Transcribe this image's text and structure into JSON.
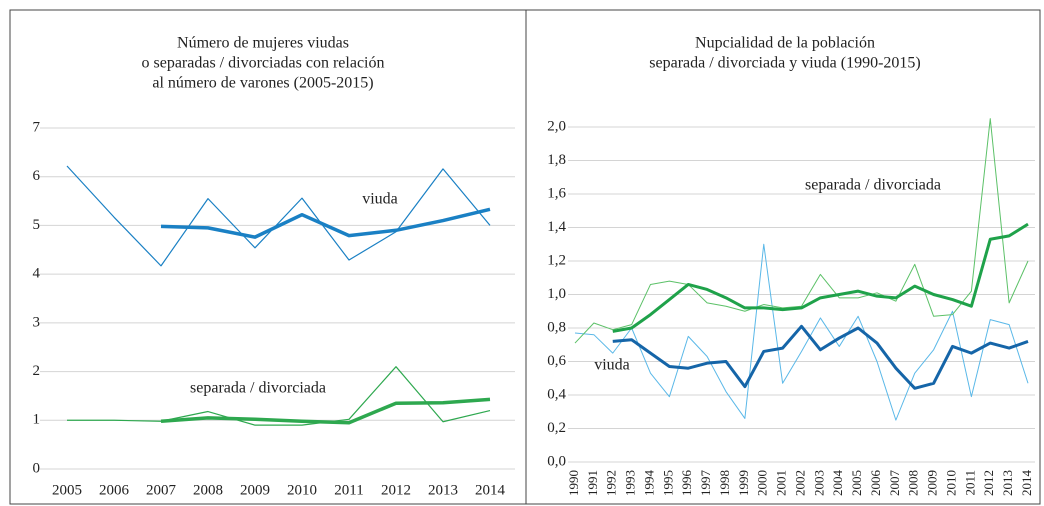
{
  "chart_data": [
    {
      "type": "line",
      "title": [
        "Número de mujeres viudas",
        "o separadas / divorciadas con relación",
        "al número de varones (2005-2015)"
      ],
      "categories": [
        "2005",
        "2006",
        "2007",
        "2008",
        "2009",
        "2010",
        "2011",
        "2012",
        "2013",
        "2014"
      ],
      "ylim": [
        0,
        7
      ],
      "yticks": [
        0,
        1,
        2,
        3,
        4,
        5,
        6,
        7
      ],
      "grid": true,
      "annotations": [
        "viuda",
        "separada / divorciada"
      ],
      "series": [
        {
          "color": "#1a80c4",
          "line_width": 1.2,
          "values": [
            6.22,
            5.17,
            4.17,
            5.55,
            4.54,
            5.56,
            4.29,
            4.87,
            6.16,
            5.0
          ]
        },
        {
          "color": "#1a80c4",
          "line_width": 3.5,
          "values": [
            null,
            null,
            4.98,
            4.95,
            4.76,
            5.22,
            4.79,
            4.9,
            5.1,
            5.33
          ]
        },
        {
          "color": "#2ea84f",
          "line_width": 1.2,
          "values": [
            1.0,
            1.0,
            0.98,
            1.18,
            0.9,
            0.9,
            1.02,
            2.1,
            0.97,
            1.2
          ]
        },
        {
          "color": "#2ea84f",
          "line_width": 3.5,
          "values": [
            null,
            null,
            0.98,
            1.05,
            1.02,
            0.98,
            0.95,
            1.35,
            1.36,
            1.43
          ]
        }
      ]
    },
    {
      "type": "line",
      "title": [
        "Nupcialidad de la población",
        "separada / divorciada y viuda (1990-2015)"
      ],
      "categories": [
        "1990",
        "1991",
        "1992",
        "1993",
        "1994",
        "1995",
        "1996",
        "1997",
        "1998",
        "1999",
        "2000",
        "2001",
        "2002",
        "2003",
        "2004",
        "2005",
        "2006",
        "2007",
        "2008",
        "2009",
        "2010",
        "2011",
        "2012",
        "2013",
        "2014"
      ],
      "ylim": [
        0,
        2
      ],
      "yticks": [
        {
          "value": 0,
          "label": "0,0"
        },
        {
          "value": 0.2,
          "label": "0,2"
        },
        {
          "value": 0.4,
          "label": "0,4"
        },
        {
          "value": 0.6,
          "label": "0,6"
        },
        {
          "value": 0.8,
          "label": "0,8"
        },
        {
          "value": 1,
          "label": "1,0"
        },
        {
          "value": 1.2,
          "label": "1,2"
        },
        {
          "value": 1.4,
          "label": "1,4"
        },
        {
          "value": 1.6,
          "label": "1,6"
        },
        {
          "value": 1.8,
          "label": "1,8"
        },
        {
          "value": 2,
          "label": "2,0"
        }
      ],
      "grid": true,
      "annotations": [
        "separada / divorciada",
        "viuda"
      ],
      "series": [
        {
          "color": "#5ab8e8",
          "line_width": 1,
          "values": [
            0.77,
            0.76,
            0.65,
            0.8,
            0.53,
            0.39,
            0.75,
            0.63,
            0.42,
            0.26,
            1.3,
            0.47,
            0.66,
            0.86,
            0.69,
            0.87,
            0.6,
            0.25,
            0.53,
            0.67,
            0.9,
            0.39,
            0.85,
            0.82,
            0.47
          ]
        },
        {
          "color": "#5cc168",
          "line_width": 1,
          "values": [
            0.71,
            0.83,
            0.79,
            0.82,
            1.06,
            1.08,
            1.06,
            0.95,
            0.93,
            0.9,
            0.94,
            0.92,
            0.93,
            1.12,
            0.98,
            0.98,
            1.01,
            0.96,
            1.18,
            0.87,
            0.88,
            1.02,
            2.05,
            0.95,
            1.2
          ]
        },
        {
          "color": "#1565a8",
          "line_width": 3,
          "values": [
            null,
            null,
            0.72,
            0.73,
            0.65,
            0.57,
            0.56,
            0.59,
            0.6,
            0.45,
            0.66,
            0.68,
            0.81,
            0.67,
            0.74,
            0.8,
            0.71,
            0.56,
            0.44,
            0.47,
            0.69,
            0.65,
            0.71,
            0.68,
            0.72
          ]
        },
        {
          "color": "#1fa24a",
          "line_width": 3,
          "values": [
            null,
            null,
            0.78,
            0.8,
            0.88,
            0.97,
            1.06,
            1.03,
            0.98,
            0.92,
            0.92,
            0.91,
            0.92,
            0.98,
            1.0,
            1.02,
            0.99,
            0.98,
            1.05,
            1.0,
            0.97,
            0.93,
            1.33,
            1.35,
            1.42
          ]
        }
      ]
    }
  ]
}
